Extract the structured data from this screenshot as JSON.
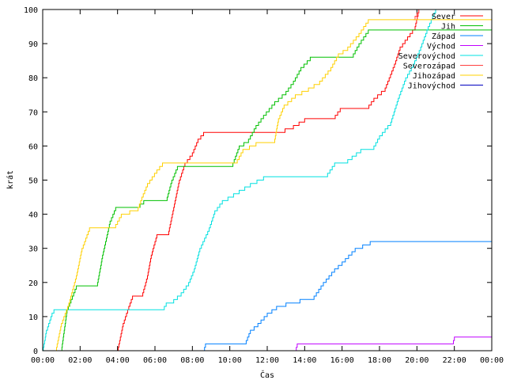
{
  "chart_data": {
    "type": "line",
    "xlabel": "Čas",
    "ylabel": "krát",
    "xlim": [
      0,
      24
    ],
    "ylim": [
      0,
      100
    ],
    "x_ticks": [
      "00:00",
      "02:00",
      "04:00",
      "06:00",
      "08:00",
      "10:00",
      "12:00",
      "14:00",
      "16:00",
      "18:00",
      "20:00",
      "22:00",
      "00:00"
    ],
    "y_ticks": [
      0,
      10,
      20,
      30,
      40,
      50,
      60,
      70,
      80,
      90,
      100
    ],
    "grid": false,
    "legend_position": "top-right",
    "series": [
      {
        "name": "Sever",
        "color": "#ff0000",
        "points": [
          [
            0,
            0
          ],
          [
            4.0,
            0
          ],
          [
            4.3,
            8
          ],
          [
            4.6,
            13
          ],
          [
            4.8,
            16
          ],
          [
            5.3,
            16
          ],
          [
            5.6,
            22
          ],
          [
            5.8,
            28
          ],
          [
            6.1,
            34
          ],
          [
            6.7,
            34
          ],
          [
            7.0,
            42
          ],
          [
            7.3,
            50
          ],
          [
            7.6,
            55
          ],
          [
            8.0,
            58
          ],
          [
            8.3,
            62
          ],
          [
            8.6,
            64
          ],
          [
            9.5,
            64
          ],
          [
            11.0,
            64
          ],
          [
            12.5,
            64
          ],
          [
            13.4,
            66
          ],
          [
            14.0,
            68
          ],
          [
            15.5,
            68
          ],
          [
            15.9,
            71
          ],
          [
            17.3,
            71
          ],
          [
            17.7,
            74
          ],
          [
            18.3,
            77
          ],
          [
            18.8,
            84
          ],
          [
            19.1,
            89
          ],
          [
            19.5,
            92
          ],
          [
            19.9,
            95
          ],
          [
            20.1,
            100
          ]
        ]
      },
      {
        "name": "Jih",
        "color": "#00c000",
        "points": [
          [
            0,
            0
          ],
          [
            1.0,
            0
          ],
          [
            1.3,
            12
          ],
          [
            1.8,
            19
          ],
          [
            2.9,
            19
          ],
          [
            3.2,
            28
          ],
          [
            3.6,
            38
          ],
          [
            3.9,
            42
          ],
          [
            5.0,
            42
          ],
          [
            5.4,
            44
          ],
          [
            6.6,
            44
          ],
          [
            6.9,
            50
          ],
          [
            7.2,
            54
          ],
          [
            10.1,
            54
          ],
          [
            10.5,
            60
          ],
          [
            11.0,
            62
          ],
          [
            11.4,
            66
          ],
          [
            11.8,
            69
          ],
          [
            12.4,
            73
          ],
          [
            13.0,
            76
          ],
          [
            13.4,
            79
          ],
          [
            13.8,
            83
          ],
          [
            14.3,
            86
          ],
          [
            16.5,
            86
          ],
          [
            16.9,
            90
          ],
          [
            17.4,
            94
          ],
          [
            24.0,
            94
          ]
        ]
      },
      {
        "name": "Západ",
        "color": "#0080ff",
        "points": [
          [
            0,
            0
          ],
          [
            8.6,
            0
          ],
          [
            8.7,
            2
          ],
          [
            10.8,
            2
          ],
          [
            11.1,
            6
          ],
          [
            11.5,
            8
          ],
          [
            12.0,
            11
          ],
          [
            12.5,
            13
          ],
          [
            13.0,
            14
          ],
          [
            14.5,
            16
          ],
          [
            15.0,
            20
          ],
          [
            15.6,
            24
          ],
          [
            16.0,
            26
          ],
          [
            16.7,
            30
          ],
          [
            17.5,
            32
          ],
          [
            24.0,
            32
          ]
        ]
      },
      {
        "name": "Východ",
        "color": "#c000ff",
        "points": [
          [
            0,
            0
          ],
          [
            13.5,
            0
          ],
          [
            13.6,
            2
          ],
          [
            21.9,
            2
          ],
          [
            22.0,
            4
          ],
          [
            24.0,
            4
          ]
        ]
      },
      {
        "name": "Severovýchod",
        "color": "#00e0e0",
        "points": [
          [
            0,
            0
          ],
          [
            0.2,
            6
          ],
          [
            0.5,
            11
          ],
          [
            0.6,
            12
          ],
          [
            6.4,
            12
          ],
          [
            6.6,
            14
          ],
          [
            7.0,
            15
          ],
          [
            7.4,
            17
          ],
          [
            7.8,
            20
          ],
          [
            8.1,
            24
          ],
          [
            8.4,
            30
          ],
          [
            8.9,
            36
          ],
          [
            9.2,
            41
          ],
          [
            9.6,
            44
          ],
          [
            10.2,
            46
          ],
          [
            11.1,
            49
          ],
          [
            11.8,
            51
          ],
          [
            15.1,
            51
          ],
          [
            15.6,
            55
          ],
          [
            16.3,
            56
          ],
          [
            17.0,
            59
          ],
          [
            17.6,
            59
          ],
          [
            18.0,
            63
          ],
          [
            18.6,
            67
          ],
          [
            19.0,
            74
          ],
          [
            19.4,
            80
          ],
          [
            19.8,
            84
          ],
          [
            20.2,
            89
          ],
          [
            20.6,
            95
          ],
          [
            21.0,
            100
          ]
        ]
      },
      {
        "name": "Severozápad",
        "color": "#ff4040",
        "points": [
          [
            19.8,
            97
          ],
          [
            20.1,
            100
          ]
        ]
      },
      {
        "name": "Jihozápad",
        "color": "#ffd000",
        "points": [
          [
            0,
            0
          ],
          [
            0.7,
            0
          ],
          [
            1.0,
            8
          ],
          [
            1.4,
            14
          ],
          [
            1.8,
            22
          ],
          [
            2.1,
            30
          ],
          [
            2.5,
            36
          ],
          [
            3.8,
            36
          ],
          [
            4.2,
            40
          ],
          [
            5.1,
            42
          ],
          [
            5.3,
            45
          ],
          [
            5.6,
            49
          ],
          [
            6.1,
            53
          ],
          [
            6.4,
            55
          ],
          [
            10.3,
            55
          ],
          [
            10.7,
            59
          ],
          [
            11.4,
            61
          ],
          [
            12.4,
            62
          ],
          [
            12.6,
            68
          ],
          [
            12.9,
            72
          ],
          [
            13.5,
            75
          ],
          [
            14.2,
            77
          ],
          [
            14.8,
            79
          ],
          [
            15.4,
            83
          ],
          [
            15.8,
            87
          ],
          [
            16.3,
            89
          ],
          [
            16.9,
            93
          ],
          [
            17.4,
            97
          ],
          [
            24.0,
            97
          ]
        ]
      },
      {
        "name": "Jihovýchod",
        "color": "#0000c0",
        "points": []
      }
    ]
  }
}
